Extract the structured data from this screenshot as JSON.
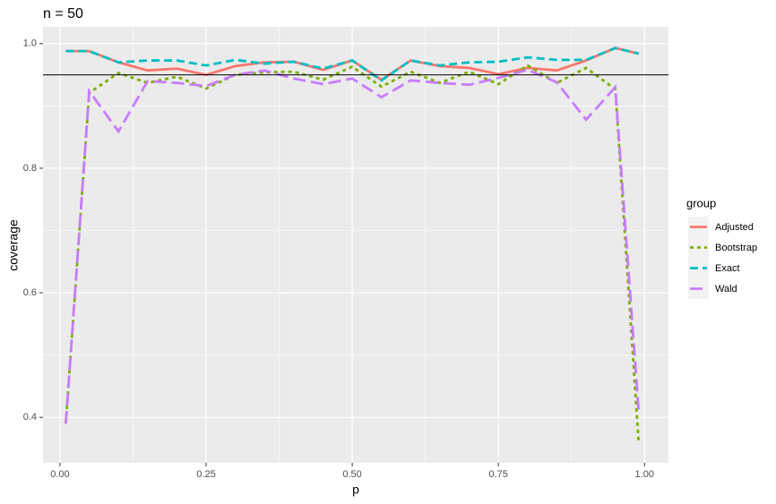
{
  "chart_data": {
    "type": "line",
    "title": "n = 50",
    "x_label": "p",
    "y_label": "coverage",
    "x": [
      0.01,
      0.05,
      0.1,
      0.15,
      0.2,
      0.25,
      0.3,
      0.35,
      0.4,
      0.45,
      0.5,
      0.55,
      0.6,
      0.65,
      0.7,
      0.75,
      0.8,
      0.85,
      0.9,
      0.95,
      0.99
    ],
    "series": [
      {
        "name": "Adjusted",
        "color": "#F8766D",
        "dash": "solid",
        "values": [
          0.988,
          0.988,
          0.97,
          0.957,
          0.96,
          0.95,
          0.964,
          0.97,
          0.971,
          0.958,
          0.973,
          0.942,
          0.973,
          0.964,
          0.961,
          0.951,
          0.961,
          0.957,
          0.973,
          0.993,
          0.984
        ]
      },
      {
        "name": "Bootstrap",
        "color": "#7CAE00",
        "dash": "dotted",
        "values": [
          0.39,
          0.921,
          0.953,
          0.937,
          0.947,
          0.928,
          0.95,
          0.954,
          0.955,
          0.942,
          0.963,
          0.931,
          0.955,
          0.937,
          0.955,
          0.935,
          0.965,
          0.937,
          0.961,
          0.927,
          0.36
        ]
      },
      {
        "name": "Exact",
        "color": "#00BFC4",
        "dash": "dashed",
        "values": [
          0.988,
          0.988,
          0.97,
          0.973,
          0.973,
          0.965,
          0.974,
          0.968,
          0.971,
          0.96,
          0.973,
          0.941,
          0.973,
          0.965,
          0.97,
          0.971,
          0.978,
          0.974,
          0.974,
          0.993,
          0.984
        ]
      },
      {
        "name": "Wald",
        "color": "#C77CFF",
        "dash": "longdash",
        "values": [
          0.39,
          0.924,
          0.859,
          0.94,
          0.937,
          0.932,
          0.95,
          0.957,
          0.944,
          0.935,
          0.944,
          0.914,
          0.941,
          0.937,
          0.934,
          0.945,
          0.958,
          0.938,
          0.878,
          0.93,
          0.41
        ]
      }
    ],
    "hline": 0.95,
    "xlim": [
      -0.029,
      1.041
    ],
    "ylim": [
      0.327,
      1.027
    ],
    "xticks": [
      {
        "value": 0,
        "label": "0.00"
      },
      {
        "value": 0.25,
        "label": "0.25"
      },
      {
        "value": 0.5,
        "label": "0.50"
      },
      {
        "value": 0.75,
        "label": "0.75"
      },
      {
        "value": 1,
        "label": "1.00"
      }
    ],
    "yticks": [
      0.4,
      0.6,
      0.8,
      {
        "value": 1,
        "label": "1.0"
      }
    ],
    "grid": true,
    "legend_title": "group",
    "legend_position": "right"
  }
}
